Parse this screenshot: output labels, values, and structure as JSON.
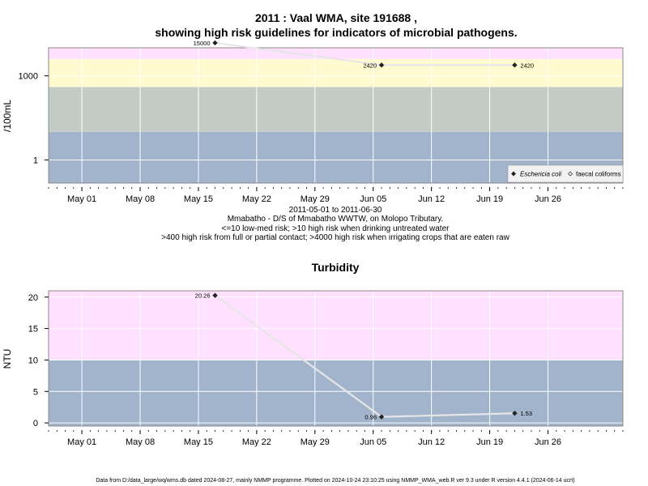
{
  "chart_data": [
    {
      "type": "line",
      "title_line1": "2011 : Vaal WMA, site 191688 ,",
      "title_line2": "showing high risk guidelines for indicators of microbial pathogens.",
      "ylabel": "/100mL",
      "y_scale": "log",
      "ylim": [
        0.15,
        10000
      ],
      "y_ticks": [
        {
          "value": 1,
          "label": "1"
        },
        {
          "value": 1000,
          "label": "1000"
        }
      ],
      "bands": [
        {
          "from": 0.15,
          "to": 10,
          "color": "#a2b3cc"
        },
        {
          "from": 10,
          "to": 400,
          "color": "#c2cbc6"
        },
        {
          "from": 400,
          "to": 4000,
          "color": "#fffad0"
        },
        {
          "from": 4000,
          "to": 10000,
          "color": "#ffe0ff"
        }
      ],
      "series": [
        {
          "name": "Eschericia coli",
          "color": "#e6e6e6",
          "points": [
            {
              "x": "2011-05-17",
              "y": 15000,
              "label": "15000"
            },
            {
              "x": "2011-06-06",
              "y": 2420,
              "label": "2420"
            },
            {
              "x": "2011-06-22",
              "y": 2420,
              "label": "2420"
            }
          ]
        }
      ],
      "legend": {
        "position": "bottom-right",
        "items": [
          {
            "label": "Eschericia coli",
            "marker": "filled-diamond"
          },
          {
            "label": "faecal coliforms",
            "marker": "open-diamond"
          }
        ]
      },
      "caption": [
        "2011-05-01 to 2011-06-30",
        "Mmabatho - D/S of Mmabatho WWTW, on Molopo Tributary.",
        "<=10 low-med risk; >10 high risk when drinking untreated water",
        ">400 high risk from full or partial contact; >4000 high risk when irrigating crops that are eaten raw"
      ],
      "grid": true
    },
    {
      "type": "line",
      "title": "Turbidity",
      "ylabel": "NTU",
      "ylim": [
        -0.5,
        21
      ],
      "y_ticks": [
        {
          "value": 0,
          "label": "0"
        },
        {
          "value": 5,
          "label": "5"
        },
        {
          "value": 10,
          "label": "10"
        },
        {
          "value": 15,
          "label": "15"
        },
        {
          "value": 20,
          "label": "20"
        }
      ],
      "bands": [
        {
          "from": -0.5,
          "to": 10,
          "color": "#a2b3cc"
        },
        {
          "from": 10,
          "to": 21,
          "color": "#ffe0ff"
        }
      ],
      "series": [
        {
          "color": "#e6e6e6",
          "points": [
            {
              "x": "2011-05-17",
              "y": 20.26,
              "label": "20.26"
            },
            {
              "x": "2011-06-06",
              "y": 0.96,
              "label": "0.96"
            },
            {
              "x": "2011-06-22",
              "y": 1.53,
              "label": "1.53"
            }
          ]
        }
      ],
      "grid": true
    }
  ],
  "x_axis": {
    "range": [
      "2011-04-27",
      "2011-07-05"
    ],
    "ticks": [
      {
        "date": "2011-05-01",
        "label": "May 01"
      },
      {
        "date": "2011-05-08",
        "label": "May 08"
      },
      {
        "date": "2011-05-15",
        "label": "May 15"
      },
      {
        "date": "2011-05-22",
        "label": "May 22"
      },
      {
        "date": "2011-05-29",
        "label": "May 29"
      },
      {
        "date": "2011-06-05",
        "label": "Jun 05"
      },
      {
        "date": "2011-06-12",
        "label": "Jun 12"
      },
      {
        "date": "2011-06-19",
        "label": "Jun 19"
      },
      {
        "date": "2011-06-26",
        "label": "Jun 26"
      }
    ]
  },
  "colors": {
    "grid": "#ffffff",
    "frame": "#888888",
    "point": "#222222",
    "line": "#e6e6e6"
  },
  "footer": "Data from D:/data_large/wq/wms.db dated 2024-08-27, mainly NMMP programme. Plotted on 2024-10-24 23:10:25 using NMMP_WMA_web.R ver 9.3 under R version 4.4.1 (2024-06-14 ucrt)"
}
